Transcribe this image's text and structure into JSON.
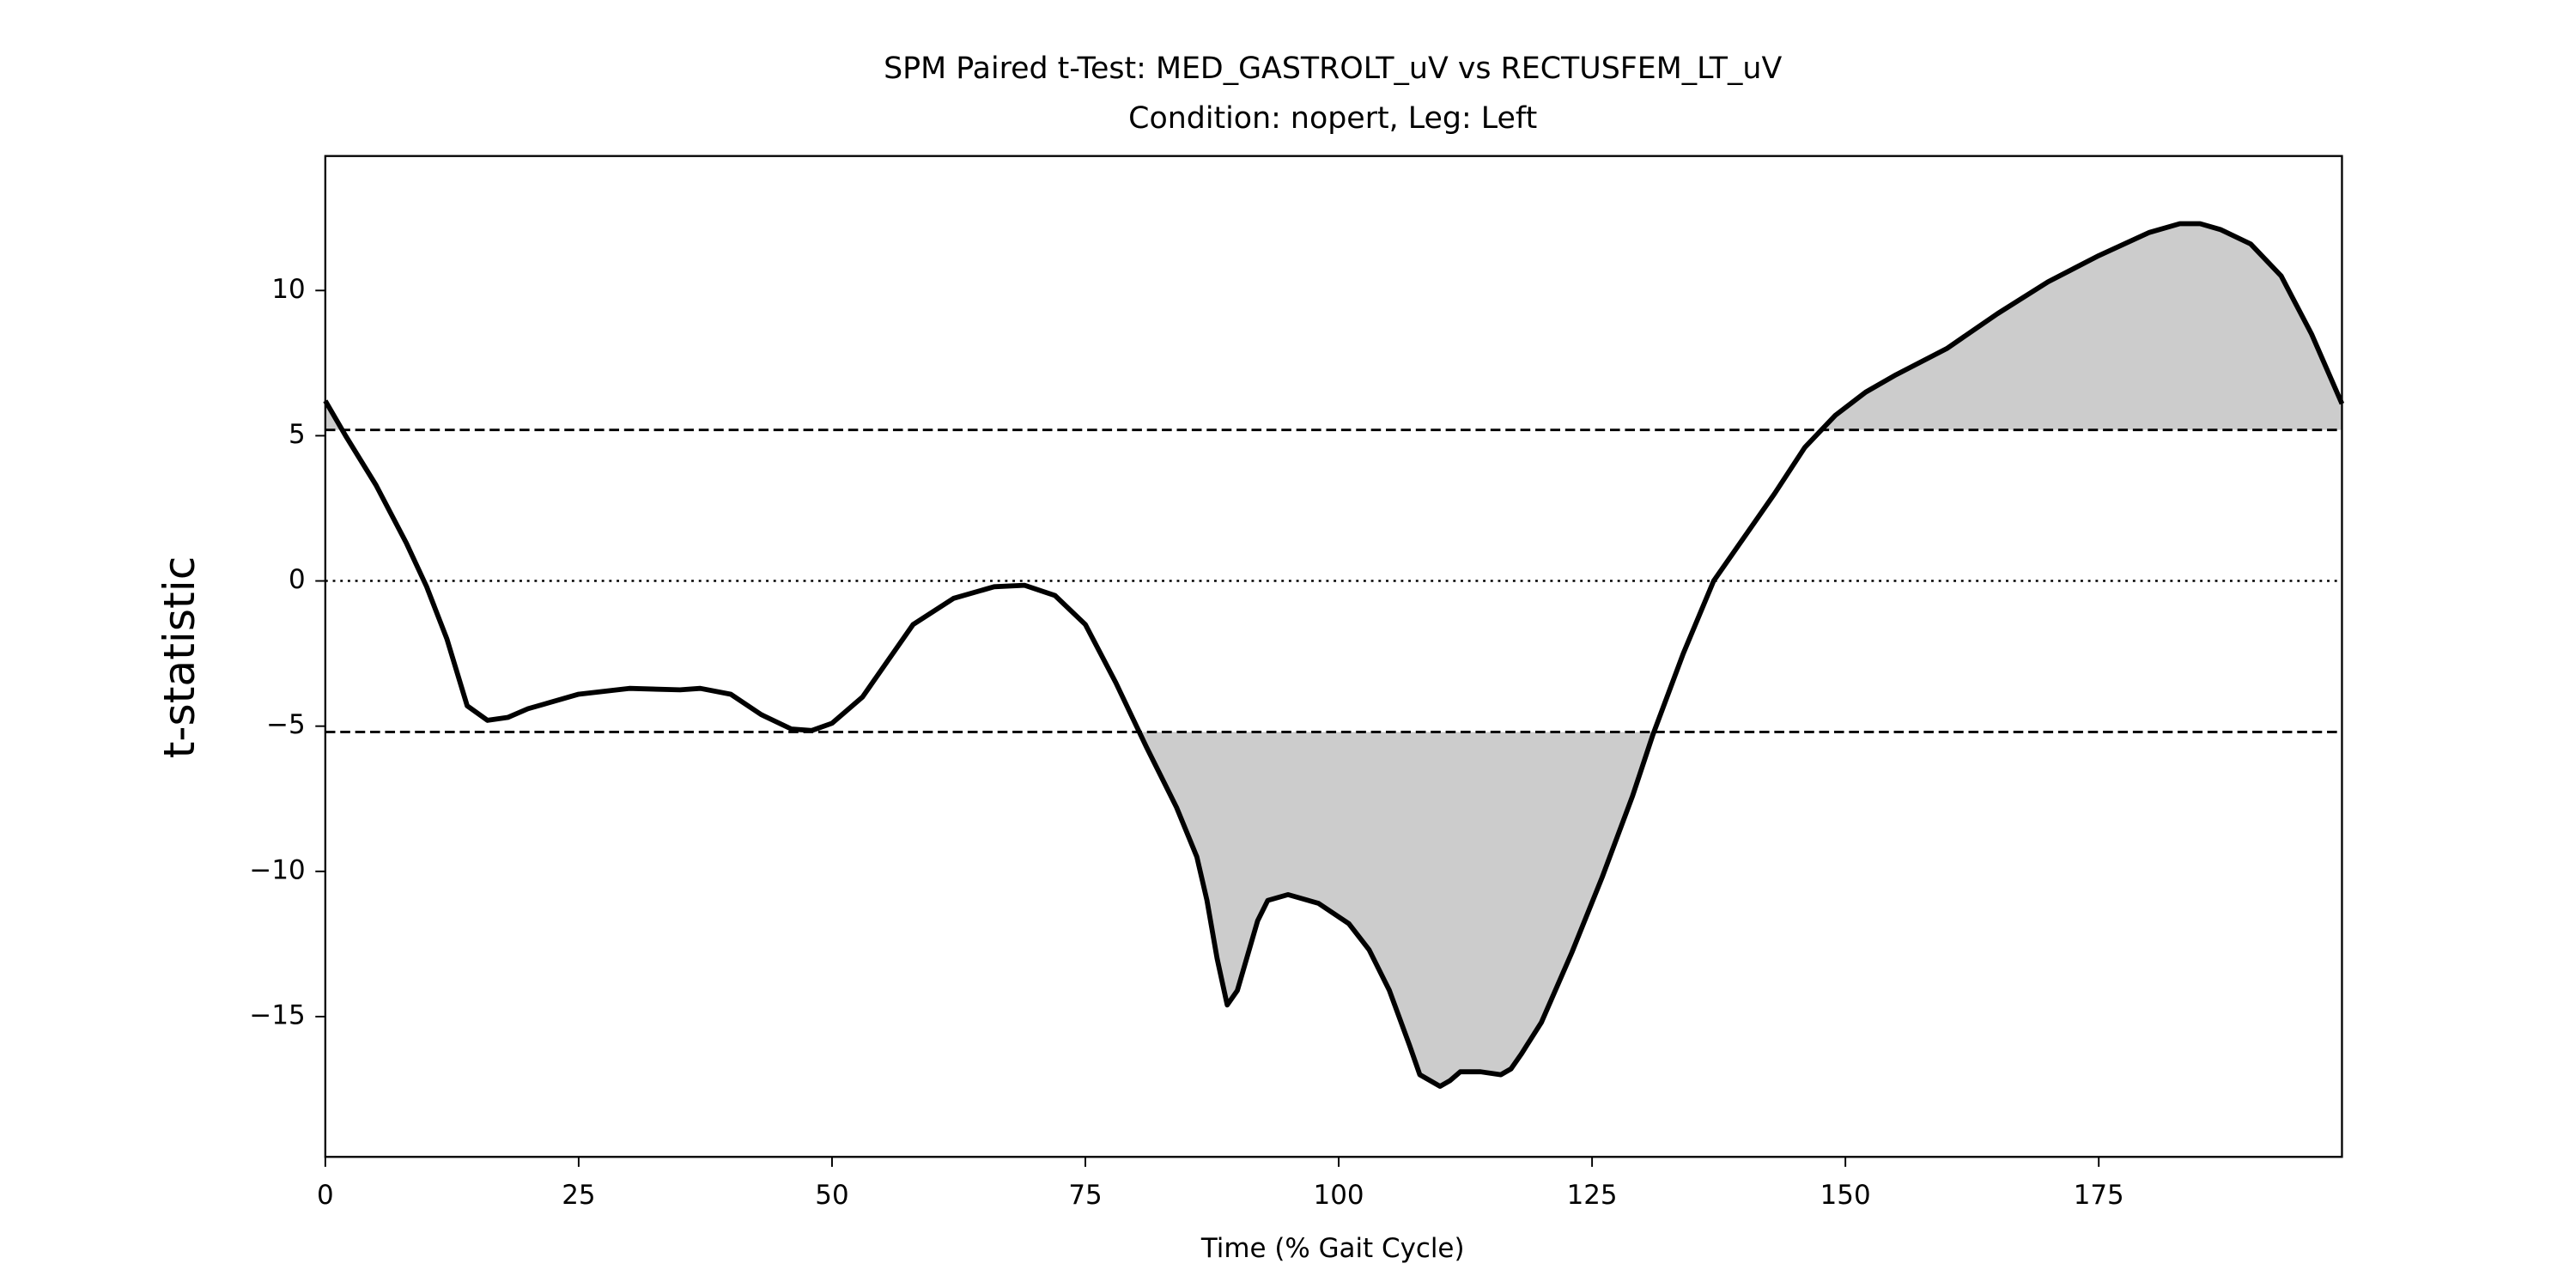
{
  "chart_data": {
    "type": "line",
    "title": "SPM Paired t-Test: MED_GASTROLT_uV vs RECTUSFEM_LT_uV",
    "subtitle": "Condition: nopert, Leg: Left",
    "x_label": "Time (% Gait Cycle)",
    "y_label": "t-statistic",
    "x": [
      0,
      2,
      5,
      8,
      10,
      12,
      14,
      16,
      18,
      20,
      25,
      30,
      35,
      37,
      40,
      43,
      46,
      48,
      50,
      53,
      56,
      58,
      62,
      66,
      69,
      72,
      75,
      78,
      81,
      84,
      86,
      87,
      88,
      89,
      90,
      92,
      93,
      95,
      98,
      101,
      103,
      105,
      107,
      108,
      110,
      111,
      112,
      114,
      116,
      117,
      118,
      120,
      123,
      126,
      129,
      131,
      134,
      137,
      140,
      143,
      146,
      149,
      152,
      155,
      160,
      165,
      170,
      175,
      180,
      183,
      185,
      187,
      190,
      193,
      196,
      199
    ],
    "series": [
      {
        "color": "#000000",
        "values": [
          6.2,
          5.0,
          3.3,
          1.3,
          -0.2,
          -2.0,
          -4.3,
          -4.8,
          -4.7,
          -4.4,
          -3.9,
          -3.7,
          -3.75,
          -3.7,
          -3.9,
          -4.6,
          -5.1,
          -5.15,
          -4.9,
          -4.0,
          -2.5,
          -1.5,
          -0.6,
          -0.2,
          -0.15,
          -0.5,
          -1.5,
          -3.5,
          -5.7,
          -7.8,
          -9.5,
          -11,
          -13,
          -14.6,
          -14.1,
          -11.7,
          -11,
          -10.8,
          -11.1,
          -11.8,
          -12.7,
          -14.1,
          -16,
          -17,
          -17.4,
          -17.2,
          -16.9,
          -16.9,
          -17.0,
          -16.8,
          -16.3,
          -15.2,
          -12.8,
          -10.2,
          -7.4,
          -5.3,
          -2.5,
          0,
          1.5,
          3.0,
          4.6,
          5.7,
          6.5,
          7.1,
          8.0,
          9.2,
          10.3,
          11.2,
          12.0,
          12.3,
          12.3,
          12.1,
          11.6,
          10.5,
          8.5,
          6.1
        ]
      }
    ],
    "thresholds": [
      5.2,
      -5.2
    ],
    "reference_line": 0,
    "fill_color": "#cccccc",
    "xlim": [
      0,
      199
    ],
    "ylim": [
      -19.83,
      14.63
    ],
    "xticks": [
      0,
      25,
      50,
      75,
      100,
      125,
      150,
      175
    ],
    "yticks": [
      {
        "value": -15,
        "label": "−15"
      },
      {
        "value": -10,
        "label": "−10"
      },
      {
        "value": -5,
        "label": "−5"
      },
      0,
      5,
      10
    ]
  }
}
